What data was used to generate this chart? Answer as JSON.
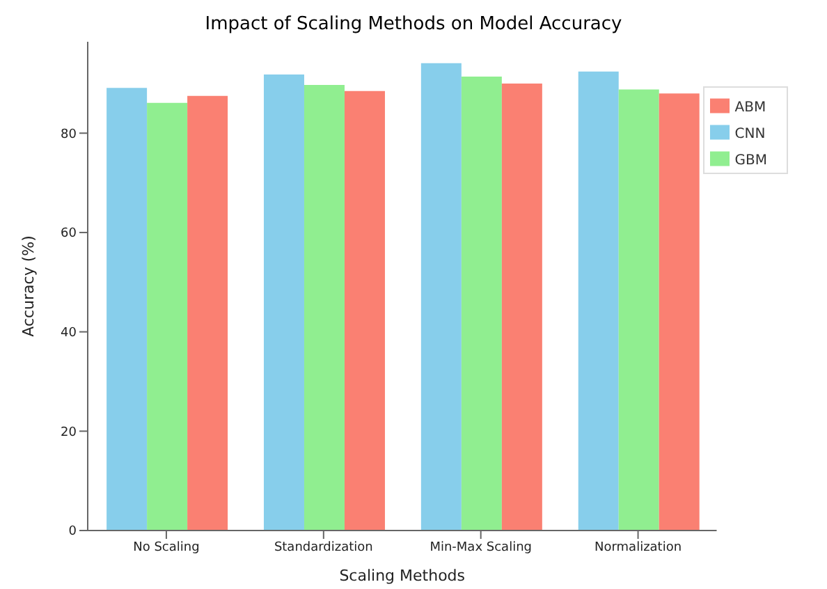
{
  "chart_data": {
    "type": "bar",
    "title": "Impact of Scaling Methods on Model Accuracy",
    "xlabel": "Scaling Methods",
    "ylabel": "Accuracy (%)",
    "categories": [
      "No Scaling",
      "Standardization",
      "Min-Max Scaling",
      "Normalization"
    ],
    "series": [
      {
        "name": "CNN",
        "color": "#87ceeb",
        "values": [
          89.1,
          91.8,
          94.1,
          92.4
        ]
      },
      {
        "name": "GBM",
        "color": "#90ee90",
        "values": [
          86.1,
          89.7,
          91.4,
          88.8
        ]
      },
      {
        "name": "ABM",
        "color": "#fa8072",
        "values": [
          87.5,
          88.5,
          90.0,
          88.0
        ]
      }
    ],
    "ylim": [
      0,
      98.4
    ],
    "yticks": [
      0,
      20,
      40,
      60,
      80
    ],
    "grid": false,
    "legend": "top right"
  }
}
